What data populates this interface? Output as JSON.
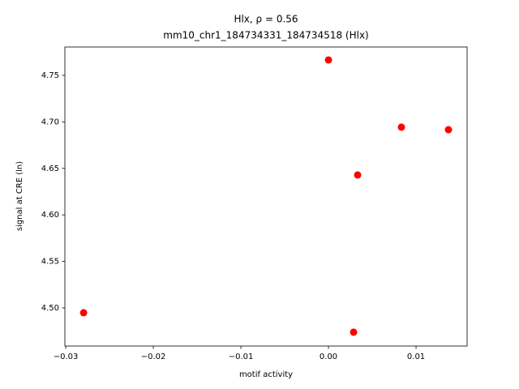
{
  "chart_data": {
    "type": "scatter",
    "title": "Hlx, ρ = 0.56",
    "subtitle": "mm10_chr1_184734331_184734518 (Hlx)",
    "x_label": "motif activity",
    "y_label": "signal at CRE (ln)",
    "series": [
      {
        "color": "#ff0000",
        "x": [
          0.0,
          0.00833,
          0.0137,
          0.00333,
          -0.02796,
          0.00287
        ],
        "values": [
          4.7666,
          4.6943,
          4.6916,
          4.6429,
          4.4948,
          4.4739
        ]
      }
    ],
    "xlim": [
      -0.0301,
      0.01583
    ],
    "ylim": [
      4.459,
      4.7805
    ],
    "xticks": [
      {
        "value": -0.03,
        "label": "−0.03"
      },
      {
        "value": -0.02,
        "label": "−0.02"
      },
      {
        "value": -0.01,
        "label": "−0.01"
      },
      {
        "value": 0,
        "label": "0.00"
      },
      0.01
    ],
    "yticks": [
      {
        "value": 4.5,
        "label": "4.50"
      },
      4.55,
      {
        "value": 4.6,
        "label": "4.60"
      },
      4.65,
      {
        "value": 4.7,
        "label": "4.70"
      },
      4.75
    ],
    "grid": false
  }
}
